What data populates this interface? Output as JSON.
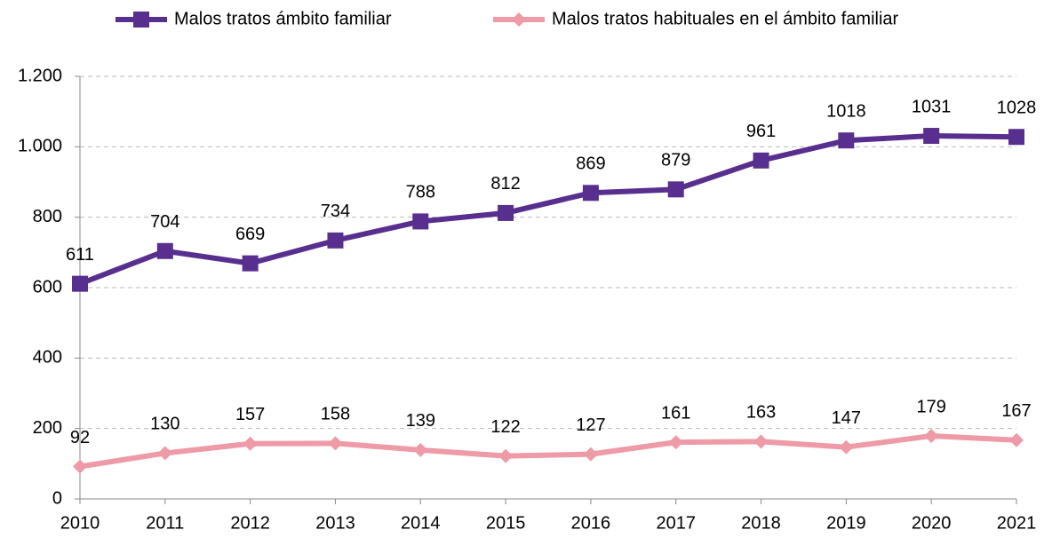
{
  "chart_data": {
    "type": "line",
    "categories": [
      "2010",
      "2011",
      "2012",
      "2013",
      "2014",
      "2015",
      "2016",
      "2017",
      "2018",
      "2019",
      "2020",
      "2021"
    ],
    "series": [
      {
        "name": "Malos tratos ámbito familiar",
        "color": "#582f8f",
        "marker": "square",
        "values": [
          611,
          704,
          669,
          734,
          788,
          812,
          869,
          879,
          961,
          1018,
          1031,
          1028
        ]
      },
      {
        "name": "Malos tratos habituales en el ámbito familiar",
        "color": "#ee9aa7",
        "marker": "diamond",
        "values": [
          92,
          130,
          157,
          158,
          139,
          122,
          127,
          161,
          163,
          147,
          179,
          167
        ]
      }
    ],
    "ylim": [
      0,
      1200
    ],
    "yticks": [
      0,
      200,
      400,
      600,
      800,
      {
        "value": 1000,
        "label": "1.000"
      },
      {
        "value": 1200,
        "label": "1.200"
      }
    ],
    "grid": true,
    "legend": "top"
  }
}
